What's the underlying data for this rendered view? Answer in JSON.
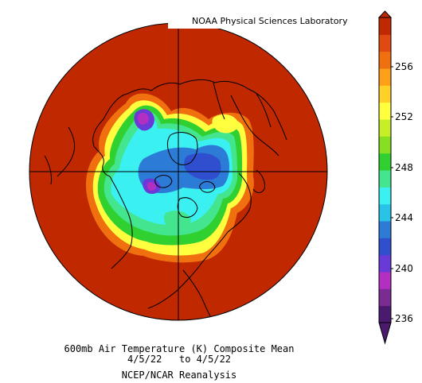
{
  "credit": "NOAA Physical Sciences Laboratory",
  "caption": {
    "line1": "600mb Air Temperature (K) Composite Mean",
    "line2": "4/5/22   to 4/5/22",
    "line3": "NCEP/NCAR Reanalysis"
  },
  "colorbar": {
    "labels": [
      "236",
      "240",
      "244",
      "248",
      "252",
      "256"
    ],
    "colors": [
      "#4a1a6e",
      "#7a2c92",
      "#b22fc2",
      "#6a3ad8",
      "#2f4fcf",
      "#2c7bd6",
      "#28c4e8",
      "#3af0f0",
      "#44e58f",
      "#30d030",
      "#86e020",
      "#c8ee28",
      "#ffff40",
      "#ffd028",
      "#ffa018",
      "#f07010",
      "#e04a10",
      "#c02800"
    ]
  },
  "palette": {
    "background_fill": "#c02800",
    "coastline": "#000000",
    "gridline": "#000000"
  }
}
